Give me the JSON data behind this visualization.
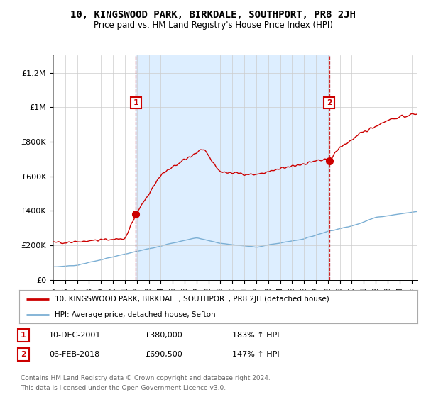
{
  "title": "10, KINGSWOOD PARK, BIRKDALE, SOUTHPORT, PR8 2JH",
  "subtitle": "Price paid vs. HM Land Registry's House Price Index (HPI)",
  "red_label": "10, KINGSWOOD PARK, BIRKDALE, SOUTHPORT, PR8 2JH (detached house)",
  "blue_label": "HPI: Average price, detached house, Sefton",
  "transaction1": {
    "num": 1,
    "date": "10-DEC-2001",
    "price": 380000,
    "hpi_pct": "183%",
    "x": 2001.92
  },
  "transaction2": {
    "num": 2,
    "date": "06-FEB-2018",
    "price": 690500,
    "hpi_pct": "147%",
    "x": 2018.1
  },
  "footnote1": "Contains HM Land Registry data © Crown copyright and database right 2024.",
  "footnote2": "This data is licensed under the Open Government Licence v3.0.",
  "ylim": [
    0,
    1300000
  ],
  "xlim_min": 1995.0,
  "xlim_max": 2025.5,
  "yticks": [
    0,
    200000,
    400000,
    600000,
    800000,
    1000000,
    1200000
  ],
  "ytick_labels": [
    "£0",
    "£200K",
    "£400K",
    "£600K",
    "£800K",
    "£1M",
    "£1.2M"
  ],
  "background_color": "#ffffff",
  "red_color": "#cc0000",
  "blue_color": "#7bafd4",
  "grid_color": "#cccccc",
  "shade_color": "#ddeeff"
}
